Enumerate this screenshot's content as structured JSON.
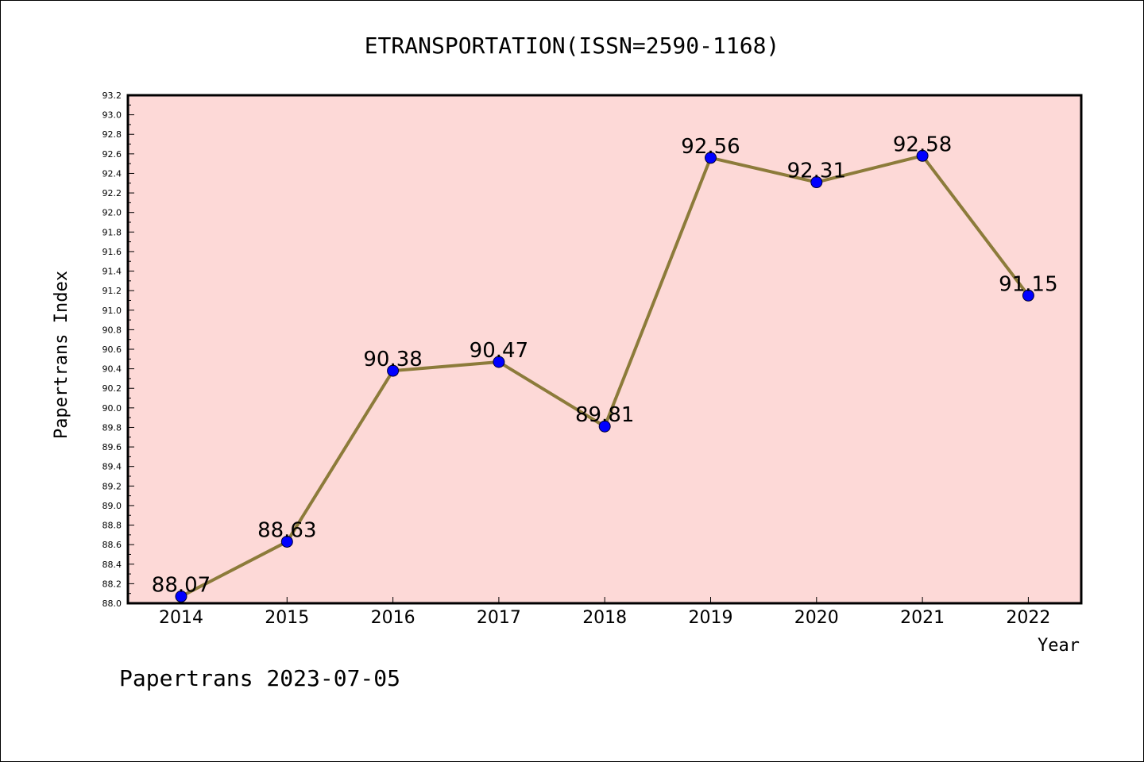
{
  "chart_data": {
    "type": "line",
    "title": "ETRANSPORTATION(ISSN=2590-1168)",
    "xlabel": "Year",
    "ylabel": "Papertrans Index",
    "categories": [
      "2014",
      "2015",
      "2016",
      "2017",
      "2018",
      "2019",
      "2020",
      "2021",
      "2022"
    ],
    "series": [
      {
        "values": [
          88.07,
          88.63,
          90.38,
          90.47,
          89.81,
          92.56,
          92.31,
          92.58,
          91.15
        ]
      }
    ],
    "data_labels": [
      "88.07",
      "88.63",
      "90.38",
      "90.47",
      "89.81",
      "92.56",
      "92.31",
      "92.58",
      "91.15"
    ],
    "ylim": [
      88.0,
      93.2
    ],
    "y_major_step": 0.2,
    "y_tick_labels": [
      "88.0",
      "88.2",
      "88.4",
      "88.6",
      "88.8",
      "89.0",
      "89.2",
      "89.4",
      "89.6",
      "89.8",
      "90.0",
      "90.2",
      "90.4",
      "90.6",
      "90.8",
      "91.0",
      "91.2",
      "91.4",
      "91.6",
      "91.8",
      "92.0",
      "92.2",
      "92.4",
      "92.6",
      "92.8",
      "93.0",
      "93.2"
    ],
    "grid": false,
    "colors": {
      "plot_background": "#fdd9d7",
      "line": "#8c7b3a",
      "marker": "#0000ff",
      "marker_edge": "#000033"
    }
  },
  "footer": "Papertrans 2023-07-05"
}
